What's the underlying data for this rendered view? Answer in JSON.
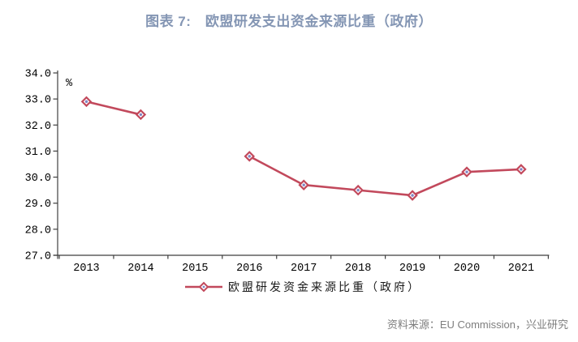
{
  "chart_data": {
    "type": "line",
    "title": "图表 7:　欧盟研发支出资金来源比重（政府）",
    "unit_label": "%",
    "categories": [
      "2013",
      "2014",
      "2015",
      "2016",
      "2017",
      "2018",
      "2019",
      "2020",
      "2021"
    ],
    "series": [
      {
        "name": "欧盟研发资金来源比重（政府）",
        "values": [
          32.9,
          32.4,
          null,
          30.8,
          29.7,
          29.5,
          29.3,
          30.2,
          30.3
        ]
      }
    ],
    "ylim": [
      27.0,
      34.0
    ],
    "ytick_step": 1.0,
    "yticks": [
      "34.0",
      "33.0",
      "32.0",
      "31.0",
      "30.0",
      "29.0",
      "28.0",
      "27.0"
    ],
    "grid": false,
    "legend_position": "bottom",
    "marker_shape": "diamond"
  },
  "footer": {
    "text": "资料来源：EU Commission，兴业研究"
  },
  "colors": {
    "title": "#8496B4",
    "line": "#C2495C",
    "marker_fill": "#FFFFFF",
    "marker_center": "#7F86C4",
    "axis": "#3F3F3F",
    "footer": "#7E7E7E"
  }
}
